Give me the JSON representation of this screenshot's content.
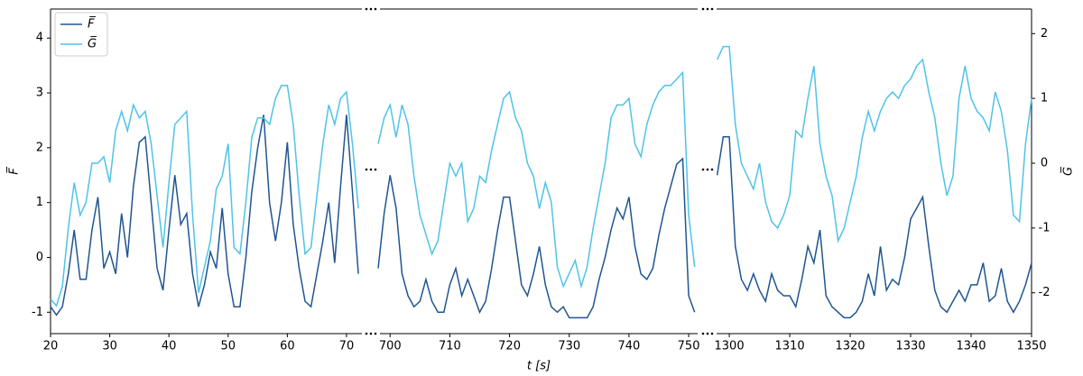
{
  "chart_data": [
    {
      "type": "line",
      "ylabel": "F̅",
      "legend": "upper left",
      "x": [
        20,
        21,
        22,
        23,
        24,
        25,
        26,
        27,
        28,
        29,
        30,
        31,
        32,
        33,
        34,
        35,
        36,
        37,
        38,
        39,
        40,
        41,
        42,
        43,
        44,
        45,
        46,
        47,
        48,
        49,
        50,
        51,
        52,
        53,
        54,
        55,
        56,
        57,
        58,
        59,
        60,
        61,
        62,
        63,
        64,
        65,
        66,
        67,
        68,
        69,
        70,
        71,
        72
      ],
      "xlim": [
        20,
        72.6
      ],
      "xticks": [
        20,
        30,
        40,
        50,
        60,
        70
      ],
      "ylim": [
        -1.39,
        4.53
      ],
      "yticks": [
        -1,
        0,
        1,
        2,
        3,
        4
      ],
      "y2lim": [
        -2.63,
        2.38
      ],
      "series": [
        {
          "name": "F̅",
          "color": "#1f5591",
          "values": [
            -0.9,
            -1.05,
            -0.9,
            -0.3,
            0.5,
            -0.4,
            -0.4,
            0.5,
            1.1,
            -0.2,
            0.1,
            -0.3,
            0.8,
            0.0,
            1.3,
            2.1,
            2.2,
            1.0,
            -0.2,
            -0.6,
            0.5,
            1.5,
            0.6,
            0.8,
            -0.3,
            -0.9,
            -0.5,
            0.1,
            -0.2,
            0.9,
            -0.3,
            -0.9,
            -0.9,
            0.0,
            1.2,
            2.0,
            2.6,
            1.0,
            0.3,
            1.0,
            2.1,
            0.6,
            -0.2,
            -0.8,
            -0.9,
            -0.3,
            0.3,
            1.0,
            -0.1,
            1.3,
            2.6,
            1.2,
            -0.3
          ]
        },
        {
          "name": "G̅",
          "color": "#4fc3e8",
          "axis": "y2",
          "values": [
            -2.1,
            -2.2,
            -1.9,
            -1.0,
            -0.3,
            -0.8,
            -0.6,
            0.0,
            0.0,
            0.1,
            -0.3,
            0.5,
            0.8,
            0.5,
            0.9,
            0.7,
            0.8,
            0.3,
            -0.5,
            -1.3,
            -0.3,
            0.6,
            0.7,
            0.8,
            -0.8,
            -2.0,
            -1.6,
            -1.2,
            -0.4,
            -0.2,
            0.3,
            -1.3,
            -1.4,
            -0.6,
            0.4,
            0.7,
            0.7,
            0.6,
            1.0,
            1.2,
            1.2,
            0.6,
            -0.5,
            -1.4,
            -1.3,
            -0.5,
            0.3,
            0.9,
            0.6,
            1.0,
            1.1,
            0.3,
            -0.7
          ]
        }
      ]
    },
    {
      "type": "line",
      "xlabel": "t [s]",
      "x": [
        698,
        699,
        700,
        701,
        702,
        703,
        704,
        705,
        706,
        707,
        708,
        709,
        710,
        711,
        712,
        713,
        714,
        715,
        716,
        717,
        718,
        719,
        720,
        721,
        722,
        723,
        724,
        725,
        726,
        727,
        728,
        729,
        730,
        731,
        732,
        733,
        734,
        735,
        736,
        737,
        738,
        739,
        740,
        741,
        742,
        743,
        744,
        745,
        746,
        747,
        748,
        749,
        750,
        751
      ],
      "xlim": [
        698.3,
        751.5
      ],
      "xticks": [
        700,
        710,
        720,
        730,
        740,
        750
      ],
      "ylim": [
        -1.39,
        4.53
      ],
      "y2lim": [
        -2.63,
        2.38
      ],
      "series": [
        {
          "color": "#1f5591",
          "values": [
            -0.2,
            0.8,
            1.5,
            0.9,
            -0.3,
            -0.7,
            -0.9,
            -0.8,
            -0.4,
            -0.8,
            -1.0,
            -1.0,
            -0.5,
            -0.2,
            -0.7,
            -0.4,
            -0.7,
            -1.0,
            -0.8,
            -0.2,
            0.5,
            1.1,
            1.1,
            0.3,
            -0.5,
            -0.7,
            -0.3,
            0.2,
            -0.5,
            -0.9,
            -1.0,
            -0.9,
            -1.1,
            -1.1,
            -1.1,
            -1.1,
            -0.9,
            -0.4,
            0.0,
            0.5,
            0.9,
            0.7,
            1.1,
            0.2,
            -0.3,
            -0.4,
            -0.2,
            0.4,
            0.9,
            1.3,
            1.7,
            1.8,
            -0.7,
            -1.0
          ]
        },
        {
          "color": "#4fc3e8",
          "axis": "y2",
          "values": [
            0.3,
            0.7,
            0.9,
            0.4,
            0.9,
            0.6,
            -0.2,
            -0.8,
            -1.1,
            -1.4,
            -1.2,
            -0.6,
            0.0,
            -0.2,
            0.0,
            -0.9,
            -0.7,
            -0.2,
            -0.3,
            0.2,
            0.6,
            1.0,
            1.1,
            0.7,
            0.5,
            0.0,
            -0.2,
            -0.7,
            -0.3,
            -0.6,
            -1.6,
            -1.9,
            -1.7,
            -1.5,
            -1.9,
            -1.6,
            -1.0,
            -0.5,
            0.0,
            0.7,
            0.9,
            0.9,
            1.0,
            0.3,
            0.1,
            0.6,
            0.9,
            1.1,
            1.2,
            1.2,
            1.3,
            1.4,
            -0.8,
            -1.6
          ]
        }
      ]
    },
    {
      "type": "line",
      "y2label": "G̅",
      "x": [
        1298,
        1299,
        1300,
        1301,
        1302,
        1303,
        1304,
        1305,
        1306,
        1307,
        1308,
        1309,
        1310,
        1311,
        1312,
        1313,
        1314,
        1315,
        1316,
        1317,
        1318,
        1319,
        1320,
        1321,
        1322,
        1323,
        1324,
        1325,
        1326,
        1327,
        1328,
        1329,
        1330,
        1331,
        1332,
        1333,
        1334,
        1335,
        1336,
        1337,
        1338,
        1339,
        1340,
        1341,
        1342,
        1343,
        1344,
        1345,
        1346,
        1347,
        1348,
        1349,
        1350
      ],
      "xlim": [
        1297.9,
        1350
      ],
      "xticks": [
        1300,
        1310,
        1320,
        1330,
        1340,
        1350
      ],
      "ylim": [
        -1.39,
        4.53
      ],
      "y2lim": [
        -2.63,
        2.38
      ],
      "y2ticks": [
        -2,
        -1,
        0,
        1,
        2
      ],
      "series": [
        {
          "color": "#1f5591",
          "values": [
            1.5,
            2.2,
            2.2,
            0.2,
            -0.4,
            -0.6,
            -0.3,
            -0.6,
            -0.8,
            -0.3,
            -0.6,
            -0.7,
            -0.7,
            -0.9,
            -0.4,
            0.2,
            -0.1,
            0.5,
            -0.7,
            -0.9,
            -1.0,
            -1.1,
            -1.1,
            -1.0,
            -0.8,
            -0.3,
            -0.7,
            0.2,
            -0.6,
            -0.4,
            -0.5,
            0.0,
            0.7,
            0.9,
            1.1,
            0.2,
            -0.6,
            -0.9,
            -1.0,
            -0.8,
            -0.6,
            -0.8,
            -0.5,
            -0.5,
            -0.1,
            -0.8,
            -0.7,
            -0.2,
            -0.8,
            -1.0,
            -0.8,
            -0.5,
            -0.1
          ]
        },
        {
          "color": "#4fc3e8",
          "axis": "y2",
          "values": [
            1.6,
            1.8,
            1.8,
            0.6,
            0.0,
            -0.2,
            -0.4,
            0.0,
            -0.6,
            -0.9,
            -1.0,
            -0.8,
            -0.5,
            0.5,
            0.4,
            1.0,
            1.5,
            0.3,
            -0.2,
            -0.5,
            -1.2,
            -1.0,
            -0.6,
            -0.2,
            0.4,
            0.8,
            0.5,
            0.8,
            1.0,
            1.1,
            1.0,
            1.2,
            1.3,
            1.5,
            1.6,
            1.1,
            0.7,
            0.0,
            -0.5,
            -0.2,
            1.0,
            1.5,
            1.0,
            0.8,
            0.7,
            0.5,
            1.1,
            0.8,
            0.2,
            -0.8,
            -0.9,
            0.3,
            1.0
          ]
        }
      ]
    }
  ]
}
